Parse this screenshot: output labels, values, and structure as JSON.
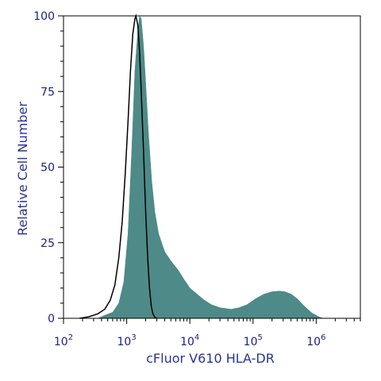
{
  "chart_data": {
    "type": "area",
    "xlabel": "cFluor V610 HLA-DR",
    "ylabel": "Relative Cell Number",
    "x_scale": "log",
    "xlim": [
      100,
      5000000
    ],
    "ylim": [
      0,
      100
    ],
    "x_ticks": [
      {
        "value": 100,
        "base": "10",
        "exp": "2"
      },
      {
        "value": 1000,
        "base": "10",
        "exp": "3"
      },
      {
        "value": 10000,
        "base": "10",
        "exp": "4"
      },
      {
        "value": 100000,
        "base": "10",
        "exp": "5"
      },
      {
        "value": 1000000,
        "base": "10",
        "exp": "6"
      }
    ],
    "y_ticks": [
      "0",
      "25",
      "50",
      "75",
      "100"
    ],
    "grid": false,
    "series": [
      {
        "style": "filled",
        "color": "#4e8a87",
        "points": [
          [
            350,
            0
          ],
          [
            450,
            1
          ],
          [
            600,
            2
          ],
          [
            750,
            5
          ],
          [
            900,
            12
          ],
          [
            1050,
            28
          ],
          [
            1200,
            55
          ],
          [
            1350,
            82
          ],
          [
            1500,
            95
          ],
          [
            1600,
            100
          ],
          [
            1700,
            99
          ],
          [
            1850,
            90
          ],
          [
            2000,
            78
          ],
          [
            2200,
            62
          ],
          [
            2500,
            45
          ],
          [
            2800,
            35
          ],
          [
            3200,
            28
          ],
          [
            4000,
            22
          ],
          [
            5000,
            19
          ],
          [
            6500,
            16
          ],
          [
            8000,
            13
          ],
          [
            10000,
            10
          ],
          [
            13000,
            8
          ],
          [
            17000,
            6
          ],
          [
            22000,
            4.5
          ],
          [
            30000,
            3.5
          ],
          [
            45000,
            3
          ],
          [
            60000,
            3.5
          ],
          [
            80000,
            4.5
          ],
          [
            110000,
            6.5
          ],
          [
            150000,
            8
          ],
          [
            200000,
            8.8
          ],
          [
            260000,
            9
          ],
          [
            320000,
            8.8
          ],
          [
            400000,
            8
          ],
          [
            500000,
            6.5
          ],
          [
            650000,
            4
          ],
          [
            850000,
            1.8
          ],
          [
            1100000,
            0.5
          ],
          [
            1300000,
            0
          ]
        ]
      },
      {
        "style": "outline",
        "color": "#000000",
        "points": [
          [
            180,
            0
          ],
          [
            250,
            0.5
          ],
          [
            350,
            1.5
          ],
          [
            450,
            3
          ],
          [
            550,
            6
          ],
          [
            650,
            11
          ],
          [
            750,
            20
          ],
          [
            850,
            32
          ],
          [
            950,
            48
          ],
          [
            1050,
            65
          ],
          [
            1150,
            82
          ],
          [
            1250,
            94
          ],
          [
            1350,
            99
          ],
          [
            1400,
            100
          ],
          [
            1500,
            97
          ],
          [
            1600,
            88
          ],
          [
            1700,
            75
          ],
          [
            1850,
            55
          ],
          [
            2000,
            35
          ],
          [
            2150,
            20
          ],
          [
            2300,
            10
          ],
          [
            2450,
            4
          ],
          [
            2600,
            1.5
          ],
          [
            2800,
            0.3
          ],
          [
            3000,
            0
          ]
        ]
      }
    ]
  }
}
